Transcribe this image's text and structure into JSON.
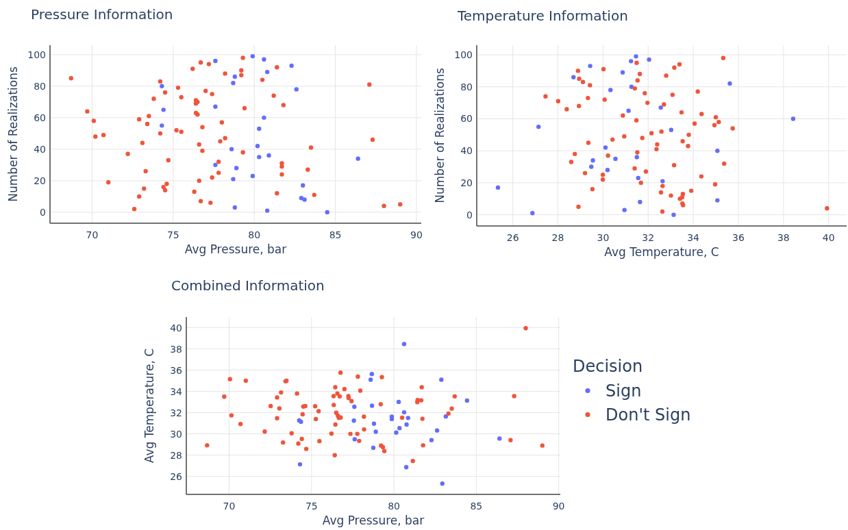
{
  "chart_data": [
    {
      "type": "scatter",
      "title": "Pressure Information",
      "xlabel": "Avg Pressure, bar",
      "ylabel": "Number of Realizations",
      "xlim": [
        67.4,
        90.3
      ],
      "ylim": [
        -7,
        106
      ],
      "xticks": [
        70,
        75,
        80,
        85,
        90
      ],
      "yticks": [
        0,
        20,
        40,
        60,
        80,
        100
      ],
      "grid": true,
      "legend": false,
      "marker": "circle",
      "series": [
        {
          "color": "#636efa",
          "x": [
            74.3,
            74.4,
            74.3,
            77.6,
            77.6,
            77.6,
            78.7,
            78.8,
            78.6,
            78.7,
            78.9,
            78.8,
            79.9,
            79.9,
            80.2,
            80.3,
            80.3,
            80.6,
            80.6,
            80.8,
            80.9,
            80.8,
            82.3,
            82.6,
            83.0,
            82.9,
            83.1,
            84.5,
            86.4
          ],
          "values": [
            80,
            65,
            55,
            96,
            67,
            30,
            82,
            86,
            40,
            21,
            28,
            3,
            99,
            23,
            42,
            53,
            35,
            97,
            60,
            89,
            36,
            1,
            93,
            78,
            17,
            9,
            8,
            0,
            34
          ]
        },
        {
          "color": "#ef553b",
          "x": [
            68.7,
            69.7,
            70.1,
            70.2,
            70.7,
            71.0,
            72.2,
            72.6,
            72.9,
            72.9,
            73.1,
            73.2,
            73.3,
            73.4,
            73.5,
            73.8,
            74.2,
            74.2,
            74.4,
            74.5,
            74.5,
            74.6,
            74.7,
            75.2,
            75.3,
            75.5,
            75.5,
            76.2,
            76.3,
            76.4,
            76.4,
            76.5,
            76.4,
            76.5,
            76.6,
            76.6,
            76.7,
            76.7,
            76.8,
            76.8,
            77.0,
            77.2,
            77.3,
            77.4,
            77.4,
            77.8,
            77.8,
            77.9,
            78.0,
            78.2,
            78.2,
            79.2,
            79.2,
            79.3,
            79.3,
            79.4,
            80.5,
            81.2,
            81.4,
            81.4,
            81.7,
            81.7,
            81.7,
            81.8,
            83.3,
            83.5,
            83.7,
            87.1,
            87.3,
            88.0,
            89.0
          ],
          "values": [
            85,
            64,
            58,
            48,
            49,
            19,
            37,
            2,
            59,
            10,
            44,
            15,
            26,
            56,
            61,
            72,
            50,
            83,
            16,
            76,
            14,
            18,
            33,
            52,
            79,
            51,
            73,
            91,
            13,
            69,
            71,
            70,
            63,
            62,
            43,
            20,
            95,
            7,
            54,
            39,
            77,
            94,
            6,
            22,
            75,
            25,
            32,
            45,
            57,
            88,
            47,
            87,
            90,
            98,
            38,
            66,
            84,
            74,
            92,
            12,
            31,
            29,
            24,
            68,
            27,
            41,
            11,
            81,
            46,
            4,
            5
          ]
        }
      ]
    },
    {
      "type": "scatter",
      "title": "Temperature Information",
      "xlabel": "Avg Temperature, C",
      "ylabel": "Number of Realizations",
      "xlim": [
        24.4,
        40.8
      ],
      "ylim": [
        -7,
        106
      ],
      "xticks": [
        26,
        28,
        30,
        32,
        34,
        36,
        38,
        40
      ],
      "yticks": [
        0,
        20,
        40,
        60,
        80,
        100
      ],
      "grid": true,
      "legend": false,
      "marker": "circle",
      "series": [
        {
          "color": "#636efa",
          "x": [
            25.34,
            26.87,
            27.14,
            28.69,
            29.43,
            29.48,
            29.55,
            30.11,
            30.2,
            30.33,
            30.55,
            30.87,
            30.95,
            31.13,
            31.24,
            31.26,
            31.46,
            31.5,
            31.56,
            31.64,
            32.04,
            32.56,
            32.64,
            33.02,
            33.13,
            35.07,
            35.07,
            35.62,
            38.43
          ],
          "values": [
            17,
            1,
            55,
            86,
            93,
            30,
            34,
            42,
            28,
            78,
            35,
            89,
            3,
            65,
            96,
            80,
            99,
            36,
            23,
            8,
            97,
            67,
            21,
            53,
            0,
            40,
            9,
            82,
            60
          ]
        },
        {
          "color": "#ef553b",
          "x": [
            27.45,
            28.01,
            28.39,
            28.59,
            28.75,
            28.89,
            28.91,
            28.93,
            28.94,
            29.11,
            29.2,
            29.33,
            29.35,
            29.42,
            29.53,
            29.99,
            29.99,
            30.02,
            30.07,
            30.22,
            30.42,
            30.88,
            30.94,
            31.4,
            31.41,
            31.48,
            31.49,
            31.52,
            31.53,
            31.63,
            31.68,
            31.74,
            31.85,
            31.9,
            31.97,
            32.15,
            32.37,
            32.4,
            32.57,
            32.59,
            32.63,
            32.64,
            32.7,
            32.8,
            33.01,
            33.08,
            33.15,
            33.16,
            33.39,
            33.41,
            33.48,
            33.51,
            33.53,
            33.54,
            33.52,
            33.55,
            33.77,
            33.8,
            33.91,
            34.06,
            34.2,
            34.36,
            34.37,
            34.94,
            34.97,
            35.0,
            35.13,
            35.33,
            35.37,
            35.75,
            39.93
          ],
          "values": [
            74,
            71,
            66,
            33,
            38,
            90,
            5,
            68,
            85,
            83,
            26,
            73,
            45,
            81,
            16,
            22,
            25,
            91,
            72,
            37,
            47,
            62,
            49,
            29,
            79,
            59,
            95,
            39,
            84,
            88,
            20,
            48,
            76,
            27,
            70,
            51,
            41,
            44,
            14,
            52,
            2,
            18,
            69,
            87,
            12,
            75,
            31,
            92,
            94,
            10,
            64,
            11,
            46,
            13,
            7,
            6,
            43,
            50,
            15,
            57,
            77,
            24,
            63,
            56,
            19,
            61,
            58,
            98,
            32,
            54,
            4
          ]
        }
      ]
    },
    {
      "type": "scatter",
      "title": "Combined Information",
      "xlabel": "Avg Pressure, bar",
      "ylabel": "Avg Temperature, C",
      "xlim": [
        67.4,
        90.1
      ],
      "ylim": [
        24.3,
        41
      ],
      "xticks": [
        70,
        75,
        80,
        85,
        90
      ],
      "yticks": [
        26,
        28,
        30,
        32,
        34,
        36,
        38,
        40
      ],
      "grid": true,
      "legend": "right",
      "legend_title": "Decision",
      "marker": "circle",
      "series": [
        {
          "name": "Sign",
          "color": "#636efa",
          "x": [
            74.3,
            74.25,
            74.36,
            77.6,
            77.57,
            77.62,
            78.59,
            78.66,
            78.67,
            78.79,
            78.75,
            78.9,
            79.87,
            79.87,
            80.14,
            80.29,
            80.34,
            80.62,
            80.62,
            80.77,
            80.86,
            80.75,
            82.28,
            82.62,
            82.88,
            82.94,
            83.15,
            84.44,
            86.41
          ],
          "values": [
            27.13,
            31.27,
            31.13,
            32.55,
            31.25,
            29.49,
            35.1,
            35.64,
            32.65,
            30.96,
            28.68,
            30.2,
            31.62,
            31.4,
            30.12,
            33.01,
            30.54,
            38.46,
            32.03,
            30.88,
            31.5,
            26.86,
            29.41,
            30.32,
            35.1,
            25.32,
            31.64,
            33.14,
            29.56
          ]
        },
        {
          "name": "Don't Sign",
          "color": "#ef553b",
          "x": [
            68.66,
            69.7,
            70.05,
            70.14,
            70.69,
            71.01,
            72.16,
            72.52,
            72.91,
            72.91,
            73.05,
            73.15,
            73.27,
            73.42,
            73.48,
            73.79,
            74.12,
            74.2,
            74.41,
            74.46,
            74.5,
            74.62,
            74.68,
            75.22,
            75.26,
            75.43,
            75.48,
            76.21,
            76.34,
            76.35,
            76.41,
            76.44,
            76.45,
            76.5,
            76.57,
            76.6,
            76.66,
            76.71,
            76.76,
            76.77,
            77.0,
            77.24,
            77.25,
            77.43,
            77.36,
            77.78,
            77.81,
            77.89,
            77.96,
            78.18,
            78.19,
            79.2,
            79.22,
            79.27,
            79.33,
            79.42,
            80.5,
            81.15,
            81.42,
            81.44,
            81.66,
            81.69,
            81.73,
            81.77,
            83.31,
            83.51,
            83.69,
            87.08,
            87.3,
            88.0,
            89.01
          ],
          "values": [
            28.92,
            33.5,
            35.15,
            31.74,
            30.93,
            35.0,
            30.22,
            32.62,
            33.43,
            31.47,
            32.4,
            33.9,
            29.19,
            34.95,
            35.0,
            30.05,
            33.8,
            29.09,
            29.53,
            31.84,
            32.57,
            32.62,
            28.58,
            32.6,
            31.4,
            32.13,
            29.31,
            30.02,
            33.55,
            32.72,
            27.99,
            34.39,
            30.88,
            31.99,
            33.8,
            31.72,
            31.5,
            33.53,
            35.76,
            31.54,
            34.22,
            33.55,
            33.38,
            33.09,
            30.0,
            30.0,
            35.39,
            29.34,
            34.07,
            31.62,
            30.42,
            32.79,
            28.9,
            35.34,
            28.75,
            28.38,
            31.52,
            27.45,
            32.99,
            33.19,
            33.16,
            34.39,
            31.42,
            28.92,
            31.91,
            32.38,
            33.53,
            29.41,
            33.55,
            39.95,
            28.9
          ]
        }
      ]
    }
  ]
}
